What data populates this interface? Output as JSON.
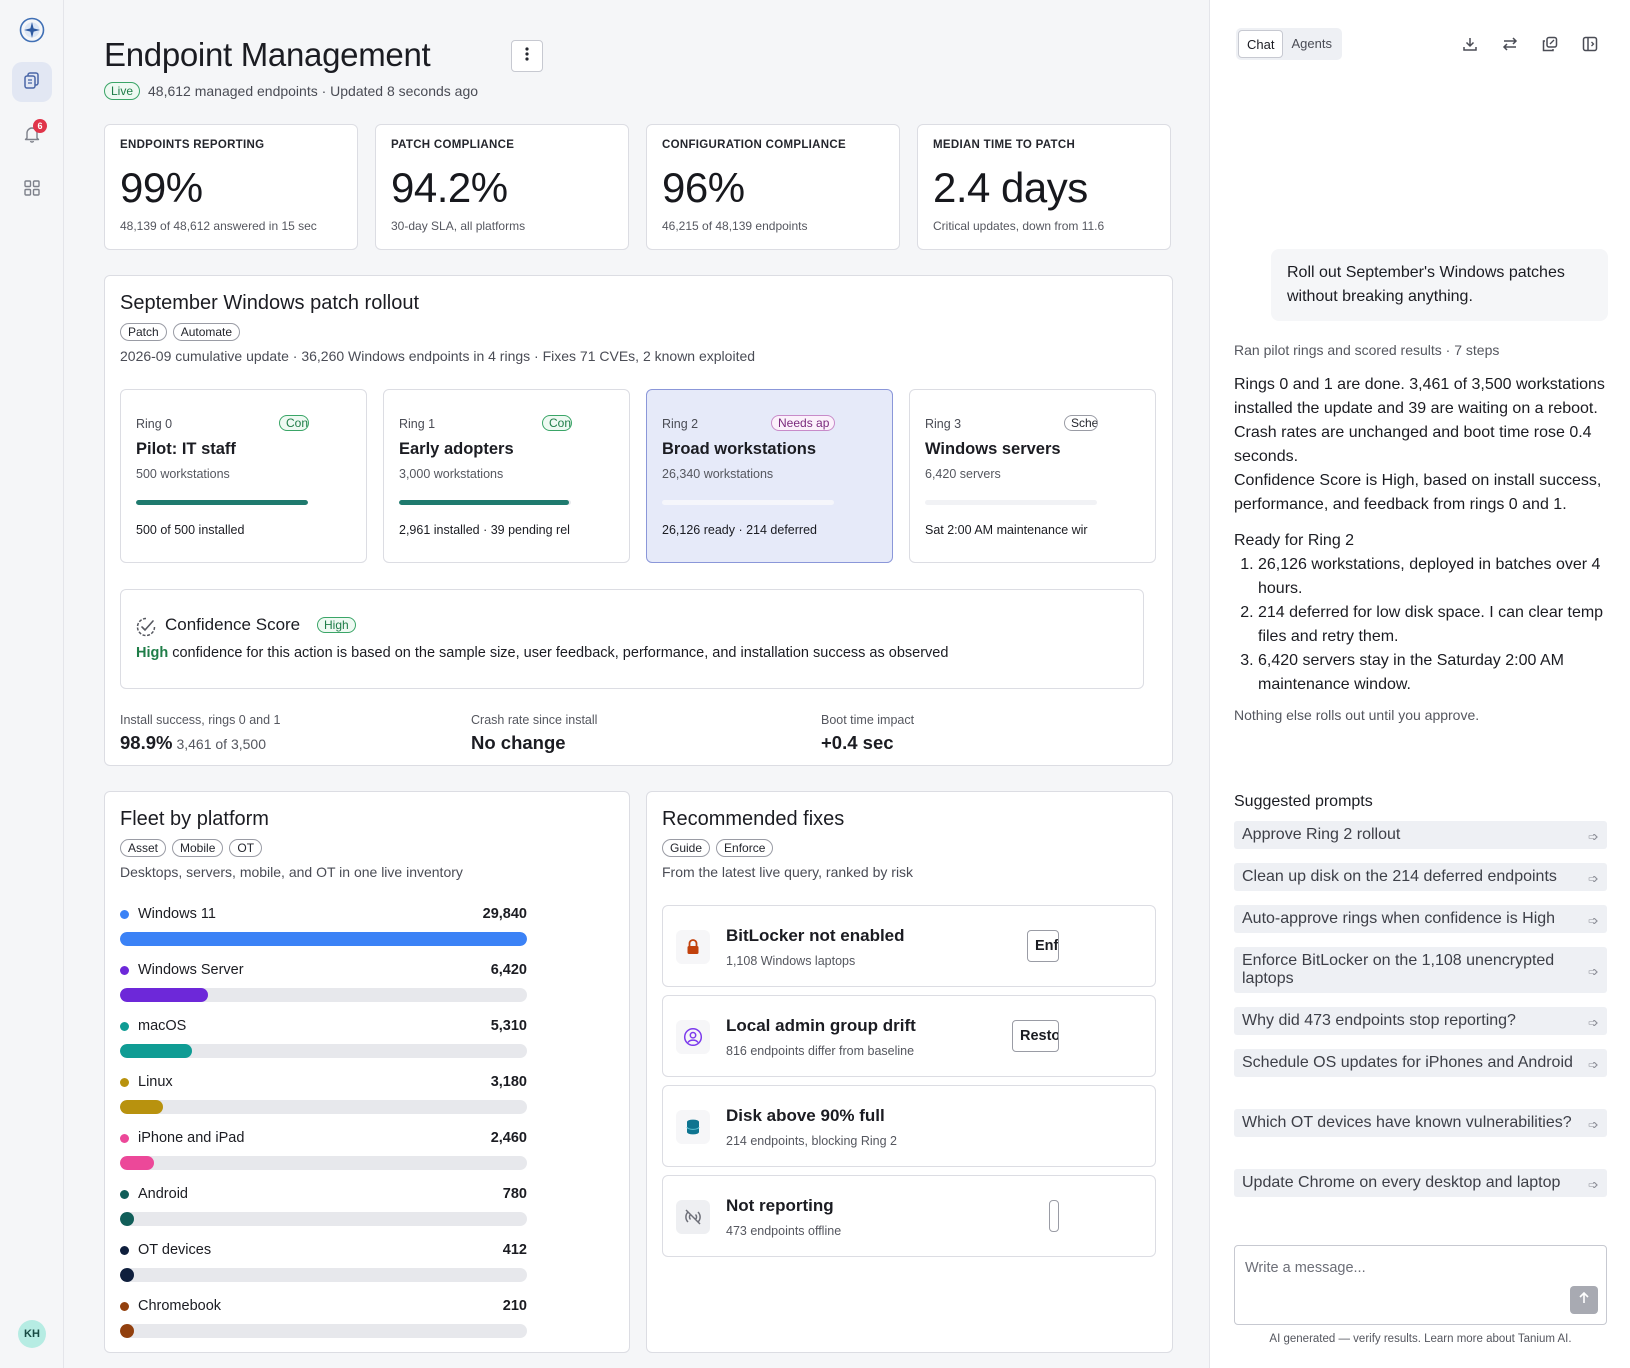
{
  "header": {
    "title": "Endpoint Management",
    "live_badge": "Live",
    "subtitle": "48,612 managed endpoints · Updated 8 seconds ago"
  },
  "rail": {
    "notification_count": "6",
    "avatar_initials": "KH"
  },
  "kpis": [
    {
      "label": "ENDPOINTS REPORTING",
      "value": "99%",
      "sub": "48,139 of 48,612 answered in 15 sec"
    },
    {
      "label": "PATCH COMPLIANCE",
      "value": "94.2%",
      "sub": "30-day SLA, all platforms"
    },
    {
      "label": "CONFIGURATION COMPLIANCE",
      "value": "96%",
      "sub": "46,215 of 48,139 endpoints"
    },
    {
      "label": "MEDIAN TIME TO PATCH",
      "value": "2.4 days",
      "sub": "Critical updates, down from 11.6"
    }
  ],
  "rollout": {
    "title": "September Windows patch rollout",
    "chips": [
      "Patch",
      "Automate"
    ],
    "description": "2026-09 cumulative update · 36,260 Windows endpoints in 4 rings · Fixes 71 CVEs, 2 known exploited",
    "rings": [
      {
        "label": "Ring 0",
        "status": "Con",
        "name": "Pilot: IT staff",
        "count": "500 workstations",
        "progress": 1.0,
        "footer": "500 of 500 installed"
      },
      {
        "label": "Ring 1",
        "status": "Con",
        "name": "Early adopters",
        "count": "3,000 workstations",
        "progress": 0.987,
        "footer": "2,961 installed · 39 pending rel"
      },
      {
        "label": "Ring 2",
        "status": "Needs ap",
        "name": "Broad workstations",
        "count": "26,340 workstations",
        "progress": 0,
        "footer": "26,126 ready · 214 deferred"
      },
      {
        "label": "Ring 3",
        "status": "Sche",
        "name": "Windows servers",
        "count": "6,420 servers",
        "progress": 0,
        "footer": "Sat 2:00 AM maintenance wir"
      }
    ],
    "confidence": {
      "title": "Confidence Score",
      "badge": "High",
      "lead": "High",
      "text": " confidence for this action is based on the sample size, user feedback, performance, and installation success as observed"
    },
    "metrics": [
      {
        "label": "Install success, rings 0 and 1",
        "value": "98.9%",
        "extra": "3,461 of 3,500"
      },
      {
        "label": "Crash rate since install",
        "value": "No change",
        "extra": ""
      },
      {
        "label": "Boot time impact",
        "value": "+0.4 sec",
        "extra": ""
      }
    ]
  },
  "fleet": {
    "title": "Fleet by platform",
    "chips": [
      "Asset",
      "Mobile",
      "OT"
    ],
    "description": "Desktops, servers, mobile, and OT in one live inventory",
    "platforms": [
      {
        "name": "Windows 11",
        "count": "29,840",
        "value": 29840,
        "color": "#3b82f6"
      },
      {
        "name": "Windows Server",
        "count": "6,420",
        "value": 6420,
        "color": "#6d28d9"
      },
      {
        "name": "macOS",
        "count": "5,310",
        "value": 5310,
        "color": "#0f9c94"
      },
      {
        "name": "Linux",
        "count": "3,180",
        "value": 3180,
        "color": "#b8920e"
      },
      {
        "name": "iPhone and iPad",
        "count": "2,460",
        "value": 2460,
        "color": "#ec4899"
      },
      {
        "name": "Android",
        "count": "780",
        "value": 780,
        "color": "#115e59"
      },
      {
        "name": "OT devices",
        "count": "412",
        "value": 412,
        "color": "#0f1f3d"
      },
      {
        "name": "Chromebook",
        "count": "210",
        "value": 210,
        "color": "#92400e"
      }
    ]
  },
  "fixes": {
    "title": "Recommended fixes",
    "chips": [
      "Guide",
      "Enforce"
    ],
    "description": "From the latest live query, ranked by risk",
    "items": [
      {
        "title": "BitLocker not enabled",
        "sub": "1,108 Windows laptops",
        "action": "Enf"
      },
      {
        "title": "Local admin group drift",
        "sub": "816 endpoints differ from baseline",
        "action": "Resto"
      },
      {
        "title": "Disk above 90% full",
        "sub": "214 endpoints, blocking Ring 2",
        "action": ""
      },
      {
        "title": "Not reporting",
        "sub": "473 endpoints offline",
        "action": ""
      }
    ]
  },
  "chat": {
    "tabs": [
      "Chat",
      "Agents"
    ],
    "user_message": "Roll out September's Windows patches without breaking anything.",
    "run_meta": "Ran pilot rings and scored results · 7 steps",
    "answer_p1": "Rings 0 and 1 are done. 3,461 of 3,500 workstations installed the update and 39 are waiting on a reboot. Crash rates are unchanged and boot time rose 0.4 seconds.",
    "answer_p2": "Confidence Score is High, based on install success, performance, and feedback from rings 0 and 1.",
    "answer_heading": "Ready for Ring 2",
    "answer_list": [
      "26,126 workstations, deployed in batches over 4 hours.",
      "214 deferred for low disk space. I can clear temp files and retry them.",
      "6,420 servers stay in the Saturday 2:00 AM maintenance window."
    ],
    "answer_note": "Nothing else rolls out until you approve.",
    "suggested_title": "Suggested prompts",
    "suggestions": [
      "Approve Ring 2 rollout",
      "Clean up disk on the 214 deferred endpoints",
      "Auto-approve rings when confidence is High",
      "Enforce BitLocker on the 1,108 unencrypted laptops",
      "Why did 473 endpoints stop reporting?",
      "Schedule OS updates for iPhones and Android",
      "Which OT devices have known vulnerabilities?",
      "Update Chrome on every desktop and laptop"
    ],
    "composer_placeholder": "Write a message...",
    "disclaimer": "AI generated — verify results. Learn more about Tanium AI."
  }
}
